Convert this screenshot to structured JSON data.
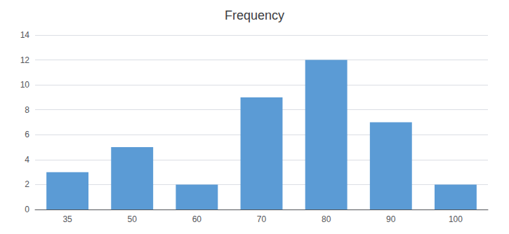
{
  "chart_data": {
    "type": "bar",
    "title": "Frequency",
    "categories": [
      "35",
      "50",
      "60",
      "70",
      "80",
      "90",
      "100"
    ],
    "values": [
      3,
      5,
      2,
      9,
      12,
      7,
      2
    ],
    "color": "#5B9BD5",
    "ylim": [
      0,
      14
    ],
    "yticks": [
      0,
      2,
      4,
      6,
      8,
      10,
      12,
      14
    ],
    "grid": true
  }
}
